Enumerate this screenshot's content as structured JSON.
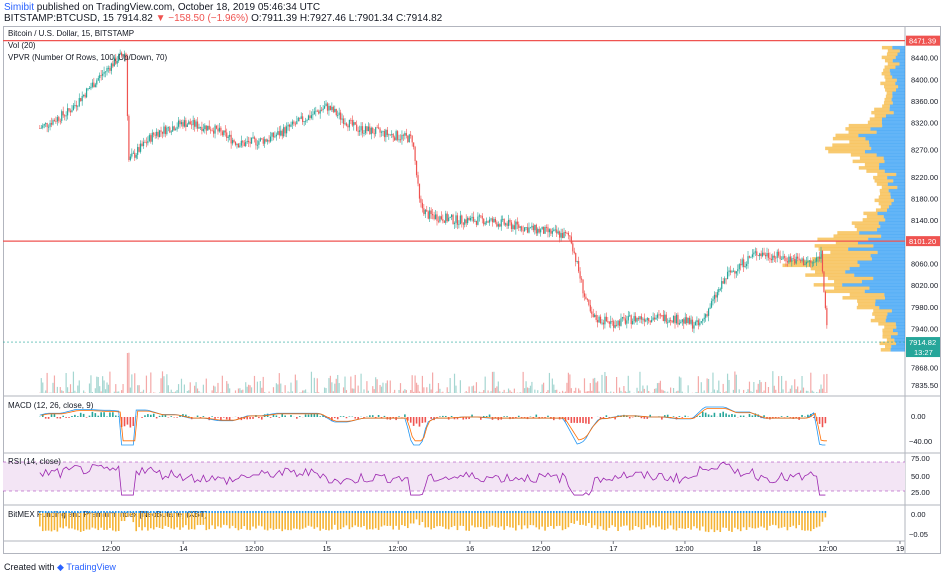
{
  "header": {
    "author": "Simibit",
    "published_text": "published on TradingView.com, October 18, 2019 05:46:34 UTC",
    "symbol": "BITSTAMP:BTCUSD, 15",
    "last": "7914.82",
    "change": "▼ −158.50 (−1.96%)",
    "open": "O:7911.39",
    "high": "H:7927.46",
    "low": "L:7901.34",
    "close": "C:7914.82"
  },
  "legend": {
    "title": "Bitcoin / U.S. Dollar, 15, BITSTAMP",
    "vol": "Vol (20)",
    "vpvr": "VPVR (Number Of Rows, 100, Up/Down, 70)"
  },
  "colors": {
    "up": "#26a69a",
    "down": "#ef5350",
    "line": "#ef5350",
    "vpvr_up": "#2196f3",
    "vpvr_down": "#f5b333"
  },
  "price_axis_ticks": [
    "8440.00",
    "8400.00",
    "8360.00",
    "8320.00",
    "8270.00",
    "8220.00",
    "8180.00",
    "8140.00",
    "8060.00",
    "8020.00",
    "7980.00",
    "7940.00",
    "7868.00",
    "7835.50"
  ],
  "price_tags": {
    "top_line": "8471.39",
    "mid_line": "8101.20",
    "last_price": "7914.82",
    "countdown": "13:27"
  },
  "time_axis_ticks": [
    "12:00",
    "14",
    "12:00",
    "15",
    "12:00",
    "16",
    "12:00",
    "17",
    "12:00",
    "18",
    "12:00",
    "19"
  ],
  "macd": {
    "label": "MACD (12, 26, close, 9)",
    "ticks": [
      "0.00",
      "−40.00"
    ]
  },
  "rsi": {
    "label": "RSI (14, close)",
    "ticks": [
      "75.00",
      "50.00",
      "25.00"
    ]
  },
  "funding": {
    "label": "BitMEX Funding and Premium Index [NeoButane] (XBT)",
    "ticks": [
      "0.00",
      "−0.05"
    ]
  },
  "footer": {
    "created": "Created with",
    "brand": "TradingView"
  },
  "chart_data": {
    "type": "candlestick",
    "title": "Bitcoin / U.S. Dollar, 15, BITSTAMP",
    "ylim": [
      7835.5,
      8480
    ],
    "horizontal_lines": [
      8471.39,
      8101.2
    ],
    "last_price": 7914.82,
    "close_path_days": [
      13.0,
      13.2,
      13.4,
      13.55,
      13.6,
      13.62,
      13.8,
      14.0,
      14.2,
      14.4,
      14.6,
      14.8,
      15.0,
      15.2,
      15.4,
      15.6,
      15.65,
      15.7,
      15.9,
      16.1,
      16.3,
      16.5,
      16.7,
      16.8,
      16.85,
      17.0,
      17.2,
      17.4,
      17.6,
      17.8,
      18.0,
      18.2,
      18.4,
      18.45,
      18.5
    ],
    "close_path_values": [
      8310,
      8340,
      8400,
      8440,
      8450,
      8250,
      8300,
      8320,
      8310,
      8280,
      8290,
      8320,
      8350,
      8310,
      8300,
      8290,
      8170,
      8150,
      8140,
      8140,
      8130,
      8120,
      8110,
      8000,
      7960,
      7950,
      7960,
      7960,
      7945,
      8040,
      8080,
      8070,
      8060,
      8080,
      7914.82
    ]
  }
}
